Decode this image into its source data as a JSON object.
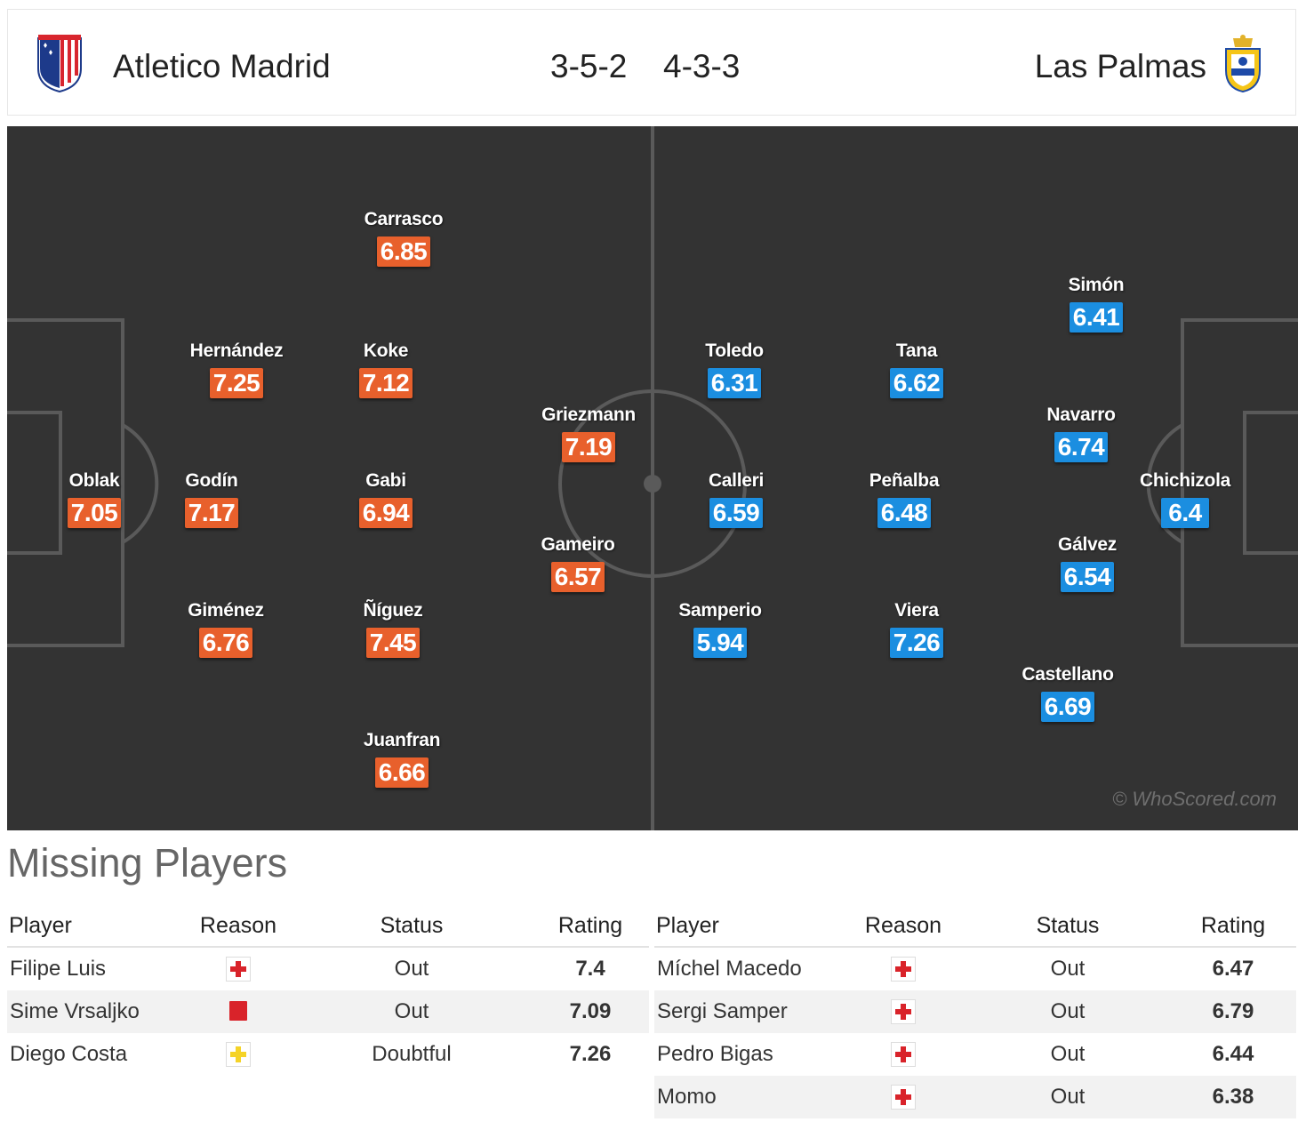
{
  "header": {
    "home_team": "Atletico Madrid",
    "away_team": "Las Palmas",
    "home_formation": "3-5-2",
    "away_formation": "4-3-3"
  },
  "pitch": {
    "watermark": "© WhoScored.com",
    "home_players": [
      {
        "name": "Oblak",
        "rating": "7.05"
      },
      {
        "name": "Hernández",
        "rating": "7.25"
      },
      {
        "name": "Godín",
        "rating": "7.17"
      },
      {
        "name": "Giménez",
        "rating": "6.76"
      },
      {
        "name": "Carrasco",
        "rating": "6.85"
      },
      {
        "name": "Koke",
        "rating": "7.12"
      },
      {
        "name": "Gabi",
        "rating": "6.94"
      },
      {
        "name": "Ñíguez",
        "rating": "7.45"
      },
      {
        "name": "Juanfran",
        "rating": "6.66"
      },
      {
        "name": "Griezmann",
        "rating": "7.19"
      },
      {
        "name": "Gameiro",
        "rating": "6.57"
      }
    ],
    "away_players": [
      {
        "name": "Toledo",
        "rating": "6.31"
      },
      {
        "name": "Calleri",
        "rating": "6.59"
      },
      {
        "name": "Samperio",
        "rating": "5.94"
      },
      {
        "name": "Tana",
        "rating": "6.62"
      },
      {
        "name": "Peñalba",
        "rating": "6.48"
      },
      {
        "name": "Viera",
        "rating": "7.26"
      },
      {
        "name": "Simón",
        "rating": "6.41"
      },
      {
        "name": "Navarro",
        "rating": "6.74"
      },
      {
        "name": "Gálvez",
        "rating": "6.54"
      },
      {
        "name": "Castellano",
        "rating": "6.69"
      },
      {
        "name": "Chichizola",
        "rating": "6.4"
      }
    ]
  },
  "missing": {
    "title": "Missing Players",
    "columns": {
      "player": "Player",
      "reason": "Reason",
      "status": "Status",
      "rating": "Rating"
    },
    "home": [
      {
        "player": "Filipe Luis",
        "reason_icon": "injury-icon",
        "status": "Out",
        "rating": "7.4"
      },
      {
        "player": "Sime Vrsaljko",
        "reason_icon": "red-card-icon",
        "status": "Out",
        "rating": "7.09"
      },
      {
        "player": "Diego Costa",
        "reason_icon": "doubtful-icon",
        "status": "Doubtful",
        "rating": "7.26"
      }
    ],
    "away": [
      {
        "player": "Míchel Macedo",
        "reason_icon": "injury-icon",
        "status": "Out",
        "rating": "6.47"
      },
      {
        "player": "Sergi Samper",
        "reason_icon": "injury-icon",
        "status": "Out",
        "rating": "6.79"
      },
      {
        "player": "Pedro Bigas",
        "reason_icon": "injury-icon",
        "status": "Out",
        "rating": "6.44"
      },
      {
        "player": "Momo",
        "reason_icon": "injury-icon",
        "status": "Out",
        "rating": "6.38"
      }
    ]
  },
  "colors": {
    "home_rating": "#e8602c",
    "away_rating": "#1b8ee0",
    "pitch": "#333333",
    "injury": "#d9232a",
    "red_card": "#d9232a",
    "doubtful": "#f5d327"
  }
}
